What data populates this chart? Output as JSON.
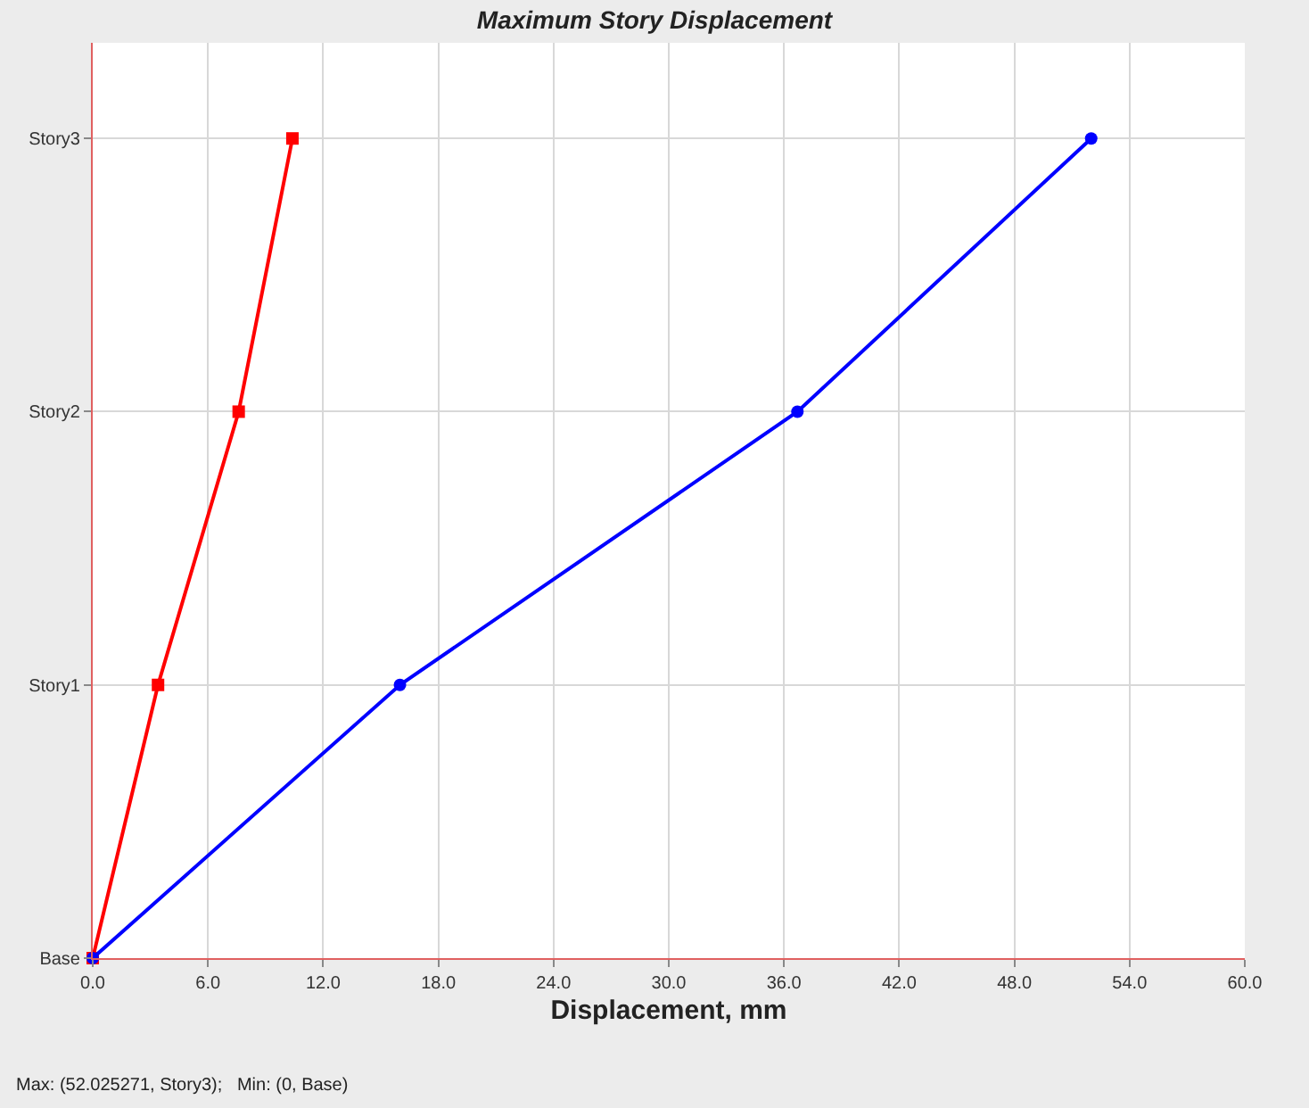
{
  "chart_data": {
    "type": "line",
    "orientation": "horizontal",
    "title": "Maximum Story Displacement",
    "xlabel": "Displacement, mm",
    "categories": [
      "Story3",
      "Story2",
      "Story1",
      "Base"
    ],
    "series": [
      {
        "color": "#ff0000",
        "marker": "square",
        "values": [
          10.4,
          7.6,
          3.4,
          0
        ]
      },
      {
        "color": "#0000ff",
        "marker": "circle",
        "values": [
          52.0,
          36.7,
          16.0,
          0
        ]
      }
    ],
    "xlim": [
      0,
      60
    ],
    "xticks": [
      {
        "value": 0,
        "label": "0.0"
      },
      {
        "value": 6,
        "label": "6.0"
      },
      {
        "value": 12,
        "label": "12.0"
      },
      {
        "value": 18,
        "label": "18.0"
      },
      {
        "value": 24,
        "label": "24.0"
      },
      {
        "value": 30,
        "label": "30.0"
      },
      {
        "value": 36,
        "label": "36.0"
      },
      {
        "value": 42,
        "label": "42.0"
      },
      {
        "value": 48,
        "label": "48.0"
      },
      {
        "value": 54,
        "label": "54.0"
      },
      {
        "value": 60,
        "label": "60.0"
      }
    ],
    "grid": true,
    "line_style": "solid",
    "annotations": [
      "Max: (52.025271, Story3);   Min: (0, Base)"
    ]
  }
}
